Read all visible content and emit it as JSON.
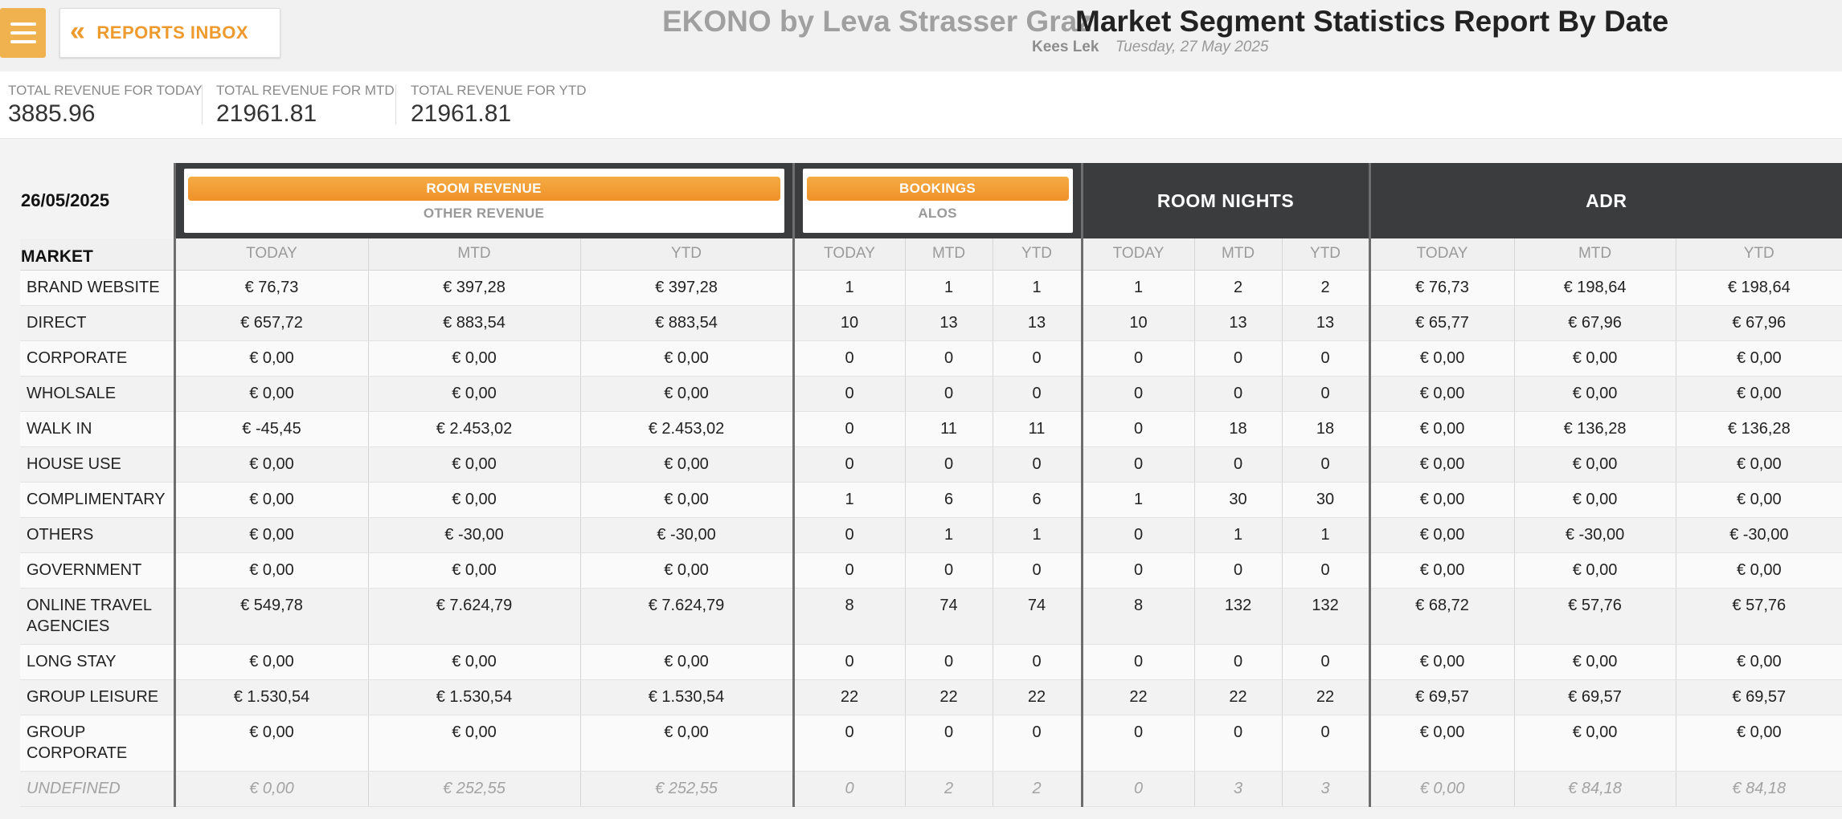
{
  "header": {
    "inbox_label": "REPORTS INBOX",
    "hotel_name": "EKONO by Leva Strasser Graz",
    "report_title": "Market Segment Statistics Report By Date",
    "user_name": "Kees Lek",
    "report_date": "Tuesday, 27 May 2025"
  },
  "totals": [
    {
      "label": "TOTAL REVENUE FOR TODAY",
      "value": "3885.96"
    },
    {
      "label": "TOTAL REVENUE FOR MTD",
      "value": "21961.81"
    },
    {
      "label": "TOTAL REVENUE FOR YTD",
      "value": "21961.81"
    }
  ],
  "table": {
    "date": "26/05/2025",
    "market_label": "MARKET",
    "groups": {
      "revenue": {
        "active": "ROOM REVENUE",
        "inactive": "OTHER REVENUE"
      },
      "bookings": {
        "active": "BOOKINGS",
        "inactive": "ALOS"
      },
      "room_nights": "ROOM NIGHTS",
      "adr": "ADR"
    },
    "subheaders": [
      "TODAY",
      "MTD",
      "YTD"
    ],
    "rows": [
      {
        "name": "BRAND WEBSITE",
        "cells": [
          "€ 76,73",
          "€ 397,28",
          "€ 397,28",
          "1",
          "1",
          "1",
          "1",
          "2",
          "2",
          "€ 76,73",
          "€ 198,64",
          "€ 198,64"
        ]
      },
      {
        "name": "DIRECT",
        "cells": [
          "€ 657,72",
          "€ 883,54",
          "€ 883,54",
          "10",
          "13",
          "13",
          "10",
          "13",
          "13",
          "€ 65,77",
          "€ 67,96",
          "€ 67,96"
        ]
      },
      {
        "name": "CORPORATE",
        "cells": [
          "€ 0,00",
          "€ 0,00",
          "€ 0,00",
          "0",
          "0",
          "0",
          "0",
          "0",
          "0",
          "€ 0,00",
          "€ 0,00",
          "€ 0,00"
        ]
      },
      {
        "name": "WHOLSALE",
        "cells": [
          "€ 0,00",
          "€ 0,00",
          "€ 0,00",
          "0",
          "0",
          "0",
          "0",
          "0",
          "0",
          "€ 0,00",
          "€ 0,00",
          "€ 0,00"
        ]
      },
      {
        "name": "WALK IN",
        "cells": [
          "€ -45,45",
          "€ 2.453,02",
          "€ 2.453,02",
          "0",
          "11",
          "11",
          "0",
          "18",
          "18",
          "€ 0,00",
          "€ 136,28",
          "€ 136,28"
        ]
      },
      {
        "name": "HOUSE USE",
        "cells": [
          "€ 0,00",
          "€ 0,00",
          "€ 0,00",
          "0",
          "0",
          "0",
          "0",
          "0",
          "0",
          "€ 0,00",
          "€ 0,00",
          "€ 0,00"
        ]
      },
      {
        "name": "COMPLIMENTARY",
        "cells": [
          "€ 0,00",
          "€ 0,00",
          "€ 0,00",
          "1",
          "6",
          "6",
          "1",
          "30",
          "30",
          "€ 0,00",
          "€ 0,00",
          "€ 0,00"
        ]
      },
      {
        "name": "OTHERS",
        "cells": [
          "€ 0,00",
          "€ -30,00",
          "€ -30,00",
          "0",
          "1",
          "1",
          "0",
          "1",
          "1",
          "€ 0,00",
          "€ -30,00",
          "€ -30,00"
        ]
      },
      {
        "name": "GOVERNMENT",
        "cells": [
          "€ 0,00",
          "€ 0,00",
          "€ 0,00",
          "0",
          "0",
          "0",
          "0",
          "0",
          "0",
          "€ 0,00",
          "€ 0,00",
          "€ 0,00"
        ]
      },
      {
        "name": "ONLINE TRAVEL AGENCIES",
        "tall": true,
        "cells": [
          "€ 549,78",
          "€ 7.624,79",
          "€ 7.624,79",
          "8",
          "74",
          "74",
          "8",
          "132",
          "132",
          "€ 68,72",
          "€ 57,76",
          "€ 57,76"
        ]
      },
      {
        "name": "LONG STAY",
        "cells": [
          "€ 0,00",
          "€ 0,00",
          "€ 0,00",
          "0",
          "0",
          "0",
          "0",
          "0",
          "0",
          "€ 0,00",
          "€ 0,00",
          "€ 0,00"
        ]
      },
      {
        "name": "GROUP LEISURE",
        "cells": [
          "€ 1.530,54",
          "€ 1.530,54",
          "€ 1.530,54",
          "22",
          "22",
          "22",
          "22",
          "22",
          "22",
          "€ 69,57",
          "€ 69,57",
          "€ 69,57"
        ]
      },
      {
        "name": "GROUP CORPORATE",
        "tall": true,
        "cells": [
          "€ 0,00",
          "€ 0,00",
          "€ 0,00",
          "0",
          "0",
          "0",
          "0",
          "0",
          "0",
          "€ 0,00",
          "€ 0,00",
          "€ 0,00"
        ]
      },
      {
        "name": "UNDEFINED",
        "undefined": true,
        "cells": [
          "€ 0,00",
          "€ 252,55",
          "€ 252,55",
          "0",
          "2",
          "2",
          "0",
          "3",
          "3",
          "€ 0,00",
          "€ 84,18",
          "€ 84,18"
        ]
      }
    ]
  }
}
